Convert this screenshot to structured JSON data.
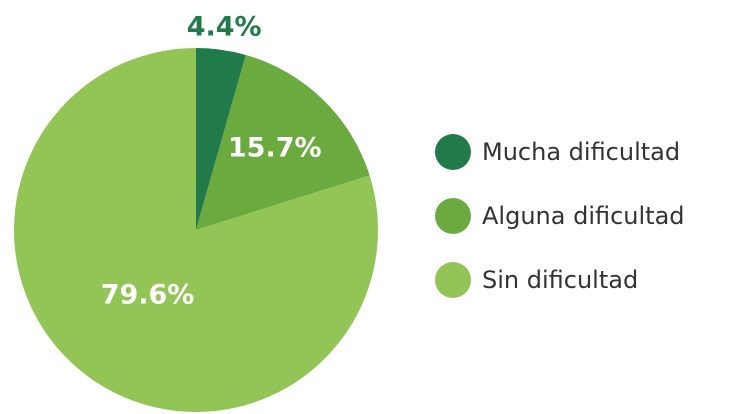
{
  "chart_data": {
    "type": "pie",
    "categories": [
      "Mucha dificultad",
      "Alguna dificultad",
      "Sin dificultad"
    ],
    "values": [
      4.4,
      15.7,
      79.6
    ],
    "value_labels": [
      "4.4%",
      "15.7%",
      "79.6%"
    ],
    "colors": [
      "#217a4a",
      "#6aaa3e",
      "#93c556"
    ],
    "legend": "right"
  }
}
